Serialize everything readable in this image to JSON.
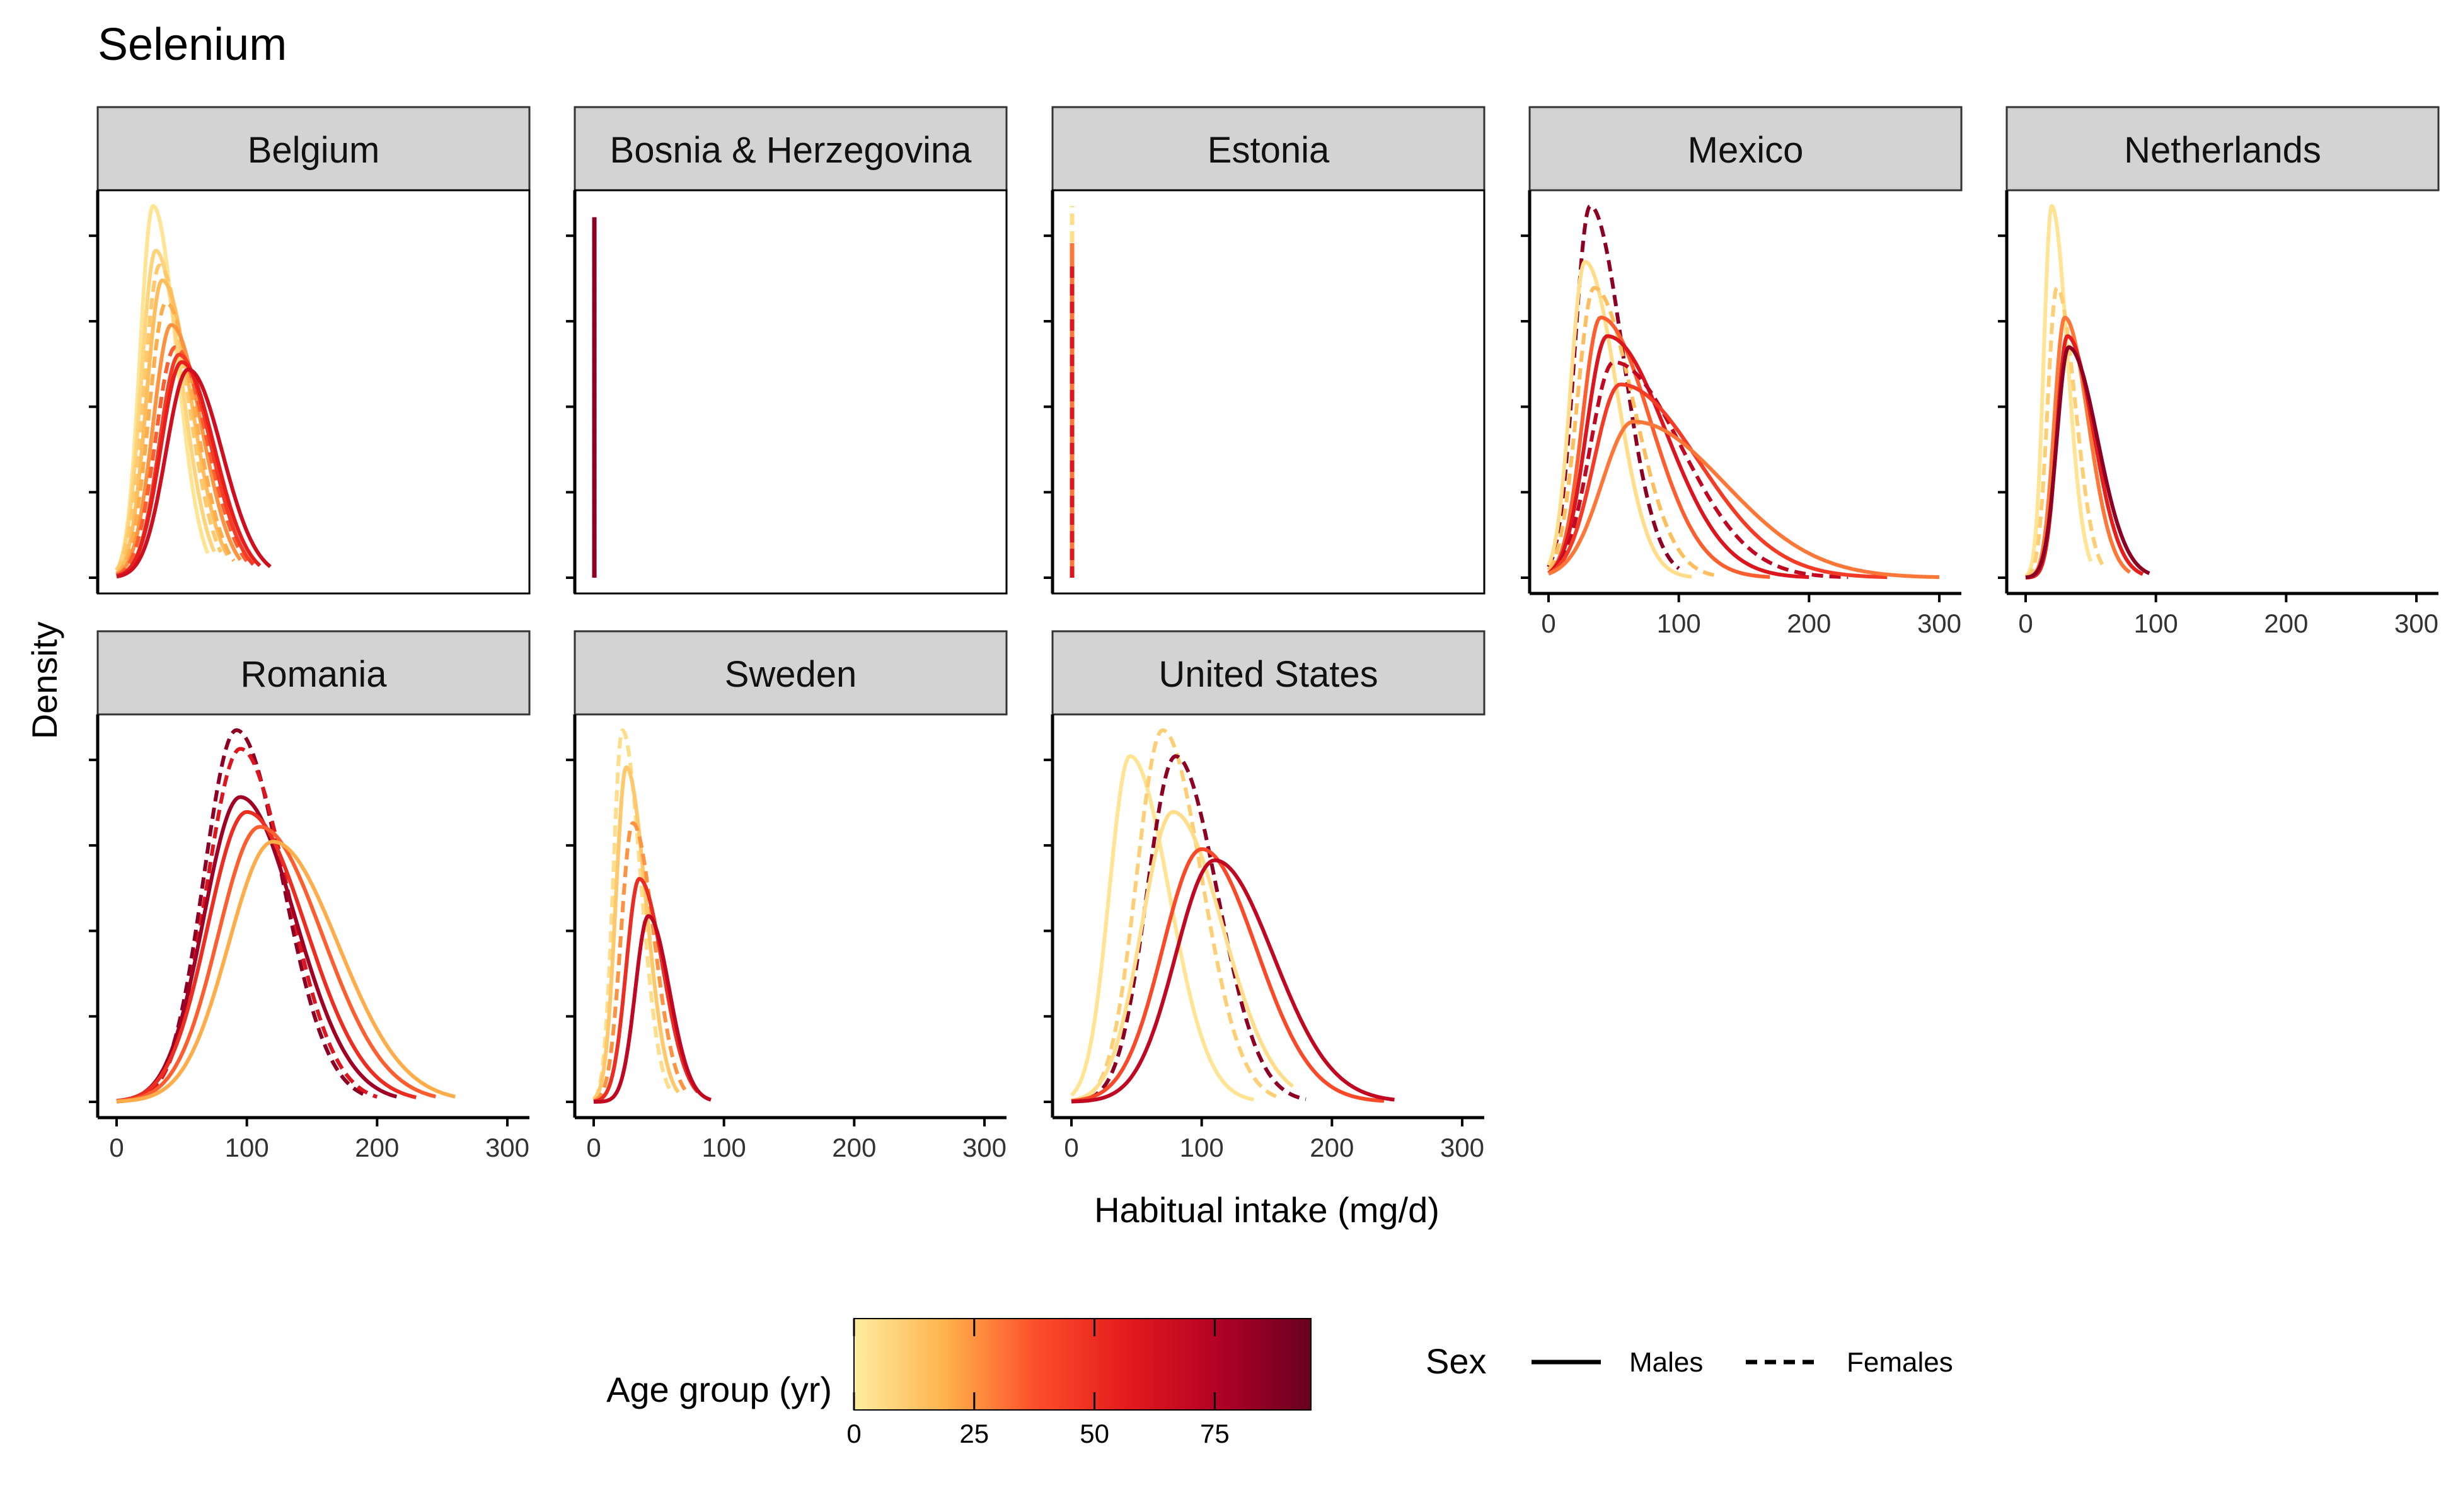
{
  "chart_data": {
    "type": "line",
    "title": "Selenium",
    "xlabel": "Habitual intake (mg/d)",
    "ylabel": "Density",
    "xlim": [
      0,
      300
    ],
    "x_ticks": [
      0,
      100,
      200,
      300
    ],
    "grid": false,
    "facets": [
      {
        "name": "Belgium",
        "series": [
          {
            "age": 3,
            "sex": "Males",
            "mode": 28,
            "peak": 1.0,
            "sd_left": 10,
            "sd_right": 18,
            "end": 70
          },
          {
            "age": 8,
            "sex": "Males",
            "mode": 30,
            "peak": 0.88,
            "sd_left": 11,
            "sd_right": 20,
            "end": 75
          },
          {
            "age": 12,
            "sex": "Females",
            "mode": 33,
            "peak": 0.84,
            "sd_left": 12,
            "sd_right": 21,
            "end": 80
          },
          {
            "age": 15,
            "sex": "Males",
            "mode": 35,
            "peak": 0.8,
            "sd_left": 12,
            "sd_right": 22,
            "end": 85
          },
          {
            "age": 20,
            "sex": "Females",
            "mode": 38,
            "peak": 0.74,
            "sd_left": 13,
            "sd_right": 22,
            "end": 90
          },
          {
            "age": 25,
            "sex": "Males",
            "mode": 42,
            "peak": 0.68,
            "sd_left": 14,
            "sd_right": 23,
            "end": 95
          },
          {
            "age": 35,
            "sex": "Females",
            "mode": 45,
            "peak": 0.62,
            "sd_left": 15,
            "sd_right": 24,
            "end": 100
          },
          {
            "age": 45,
            "sex": "Males",
            "mode": 48,
            "peak": 0.6,
            "sd_left": 15,
            "sd_right": 24,
            "end": 105
          },
          {
            "age": 55,
            "sex": "Males",
            "mode": 50,
            "peak": 0.58,
            "sd_left": 16,
            "sd_right": 25,
            "end": 110
          },
          {
            "age": 65,
            "sex": "Males",
            "mode": 55,
            "peak": 0.56,
            "sd_left": 17,
            "sd_right": 26,
            "end": 118
          }
        ]
      },
      {
        "name": "Bosnia & Herzegovina",
        "series": [
          {
            "age": 20,
            "sex": "Males",
            "spike": true,
            "x": 0.5,
            "height": 0.8
          },
          {
            "age": 60,
            "sex": "Females",
            "spike": true,
            "x": 0.5,
            "height": 0.95
          },
          {
            "age": 85,
            "sex": "Males",
            "spike": true,
            "x": 0.5,
            "height": 0.97
          }
        ]
      },
      {
        "name": "Estonia",
        "series": [
          {
            "age": 5,
            "sex": "Females",
            "spike": true,
            "x": 0.5,
            "height": 1.0
          },
          {
            "age": 30,
            "sex": "Males",
            "spike": true,
            "x": 0.5,
            "height": 0.9
          },
          {
            "age": 60,
            "sex": "Females",
            "spike": true,
            "x": 0.5,
            "height": 0.85
          }
        ]
      },
      {
        "name": "Mexico",
        "series": [
          {
            "age": 85,
            "sex": "Females",
            "mode": 32,
            "peak": 1.0,
            "sd_left": 12,
            "sd_right": 25,
            "end": 100
          },
          {
            "age": 5,
            "sex": "Males",
            "mode": 28,
            "peak": 0.85,
            "sd_left": 11,
            "sd_right": 24,
            "end": 110
          },
          {
            "age": 15,
            "sex": "Females",
            "mode": 35,
            "peak": 0.78,
            "sd_left": 13,
            "sd_right": 30,
            "end": 130
          },
          {
            "age": 35,
            "sex": "Males",
            "mode": 40,
            "peak": 0.7,
            "sd_left": 14,
            "sd_right": 38,
            "end": 170
          },
          {
            "age": 60,
            "sex": "Males",
            "mode": 45,
            "peak": 0.65,
            "sd_left": 16,
            "sd_right": 45,
            "end": 200
          },
          {
            "age": 70,
            "sex": "Females",
            "mode": 50,
            "peak": 0.58,
            "sd_left": 18,
            "sd_right": 52,
            "end": 230
          },
          {
            "age": 45,
            "sex": "Males",
            "mode": 55,
            "peak": 0.52,
            "sd_left": 20,
            "sd_right": 60,
            "end": 260
          },
          {
            "age": 30,
            "sex": "Males",
            "mode": 65,
            "peak": 0.42,
            "sd_left": 24,
            "sd_right": 70,
            "end": 300
          }
        ]
      },
      {
        "name": "Netherlands",
        "series": [
          {
            "age": 3,
            "sex": "Males",
            "mode": 20,
            "peak": 1.0,
            "sd_left": 6,
            "sd_right": 12,
            "end": 50
          },
          {
            "age": 10,
            "sex": "Females",
            "mode": 24,
            "peak": 0.78,
            "sd_left": 7,
            "sd_right": 14,
            "end": 60
          },
          {
            "age": 30,
            "sex": "Males",
            "mode": 30,
            "peak": 0.7,
            "sd_left": 8,
            "sd_right": 18,
            "end": 80
          },
          {
            "age": 55,
            "sex": "Males",
            "mode": 32,
            "peak": 0.65,
            "sd_left": 8,
            "sd_right": 20,
            "end": 90
          },
          {
            "age": 85,
            "sex": "Males",
            "mode": 33,
            "peak": 0.62,
            "sd_left": 9,
            "sd_right": 22,
            "end": 95
          }
        ]
      },
      {
        "name": "Romania",
        "series": [
          {
            "age": 85,
            "sex": "Females",
            "mode": 92,
            "peak": 1.0,
            "sd_left": 25,
            "sd_right": 35,
            "end": 190
          },
          {
            "age": 60,
            "sex": "Females",
            "mode": 95,
            "peak": 0.95,
            "sd_left": 26,
            "sd_right": 36,
            "end": 200
          },
          {
            "age": 80,
            "sex": "Males",
            "mode": 95,
            "peak": 0.82,
            "sd_left": 28,
            "sd_right": 42,
            "end": 215
          },
          {
            "age": 50,
            "sex": "Males",
            "mode": 100,
            "peak": 0.78,
            "sd_left": 30,
            "sd_right": 45,
            "end": 230
          },
          {
            "age": 35,
            "sex": "Males",
            "mode": 110,
            "peak": 0.74,
            "sd_left": 32,
            "sd_right": 48,
            "end": 245
          },
          {
            "age": 20,
            "sex": "Males",
            "mode": 120,
            "peak": 0.7,
            "sd_left": 34,
            "sd_right": 50,
            "end": 260
          }
        ]
      },
      {
        "name": "Sweden",
        "series": [
          {
            "age": 5,
            "sex": "Females",
            "mode": 22,
            "peak": 1.0,
            "sd_left": 7,
            "sd_right": 14,
            "end": 60
          },
          {
            "age": 12,
            "sex": "Males",
            "mode": 25,
            "peak": 0.9,
            "sd_left": 8,
            "sd_right": 15,
            "end": 65
          },
          {
            "age": 25,
            "sex": "Females",
            "mode": 30,
            "peak": 0.75,
            "sd_left": 9,
            "sd_right": 16,
            "end": 70
          },
          {
            "age": 50,
            "sex": "Males",
            "mode": 35,
            "peak": 0.6,
            "sd_left": 10,
            "sd_right": 18,
            "end": 80
          },
          {
            "age": 70,
            "sex": "Males",
            "mode": 42,
            "peak": 0.5,
            "sd_left": 10,
            "sd_right": 16,
            "end": 90
          }
        ]
      },
      {
        "name": "United States",
        "series": [
          {
            "age": 3,
            "sex": "Males",
            "mode": 45,
            "peak": 0.93,
            "sd_left": 16,
            "sd_right": 30,
            "end": 140
          },
          {
            "age": 10,
            "sex": "Females",
            "mode": 70,
            "peak": 1.0,
            "sd_left": 20,
            "sd_right": 30,
            "end": 160
          },
          {
            "age": 85,
            "sex": "Females",
            "mode": 80,
            "peak": 0.93,
            "sd_left": 22,
            "sd_right": 32,
            "end": 180
          },
          {
            "age": 5,
            "sex": "Males",
            "mode": 78,
            "peak": 0.78,
            "sd_left": 24,
            "sd_right": 38,
            "end": 170
          },
          {
            "age": 40,
            "sex": "Males",
            "mode": 100,
            "peak": 0.68,
            "sd_left": 30,
            "sd_right": 42,
            "end": 240
          },
          {
            "age": 70,
            "sex": "Males",
            "mode": 110,
            "peak": 0.65,
            "sd_left": 30,
            "sd_right": 45,
            "end": 248
          }
        ]
      }
    ],
    "legend": {
      "color": {
        "title": "Age group (yr)",
        "min": 0,
        "max": 95,
        "ticks": [
          0,
          25,
          50,
          75
        ],
        "colors": [
          "#FFEDA0",
          "#FEB24C",
          "#FC4E2A",
          "#E31A1C",
          "#B10026",
          "#67001F"
        ]
      },
      "linetype": {
        "title": "Sex",
        "entries": [
          "Males",
          "Females"
        ]
      }
    }
  }
}
